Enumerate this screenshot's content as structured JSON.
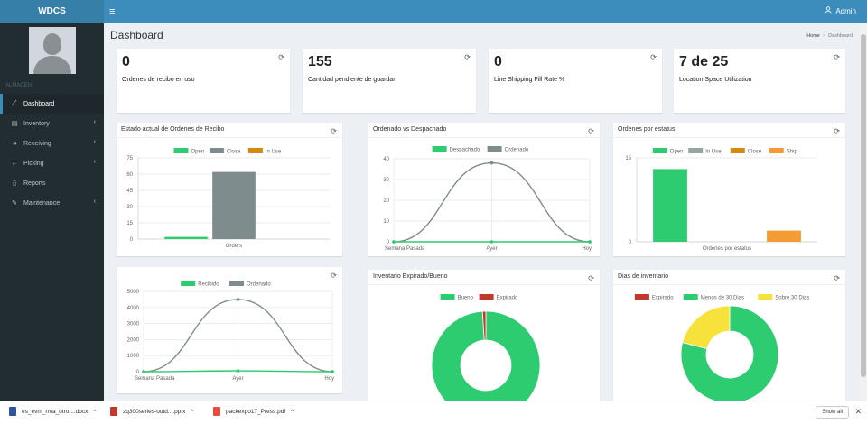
{
  "app": {
    "brand": "WDCS",
    "user": "Admin"
  },
  "sidebar": {
    "header": "ALMACEN",
    "items": [
      {
        "label": "Dashboard",
        "icon": "chart-icon",
        "active": true,
        "chev": ""
      },
      {
        "label": "Inventory",
        "icon": "list-icon",
        "active": false,
        "chev": "‹"
      },
      {
        "label": "Receiving",
        "icon": "arrow-right-icon",
        "active": false,
        "chev": "‹"
      },
      {
        "label": "Picking",
        "icon": "arrow-left-icon",
        "active": false,
        "chev": "‹"
      },
      {
        "label": "Reports",
        "icon": "file-icon",
        "active": false,
        "chev": ""
      },
      {
        "label": "Maintenance",
        "icon": "wrench-icon",
        "active": false,
        "chev": "‹"
      }
    ]
  },
  "page": {
    "title": "Dashboard",
    "breadcrumb": [
      "Home",
      "Dashboard"
    ]
  },
  "stats": [
    {
      "value": "0",
      "label": "Ordenes de recibo en uso"
    },
    {
      "value": "155",
      "label": "Cantidad pendiente de guardar"
    },
    {
      "value": "0",
      "label": "Line Shipping Fill Rate %"
    },
    {
      "value": "7 de 25",
      "label": "Location Space Utilization"
    }
  ],
  "chart_data": [
    {
      "id": "c1",
      "type": "bar",
      "title": "Estado actual de Ordenes de Recibo",
      "categories": [
        "Orders"
      ],
      "series": [
        {
          "name": "Open",
          "color": "#2ecc71",
          "values": [
            2
          ]
        },
        {
          "name": "Close",
          "color": "#7f8c8d",
          "values": [
            62
          ]
        },
        {
          "name": "In Use",
          "color": "#d68910",
          "values": [
            0
          ]
        }
      ],
      "yticks": [
        0,
        15,
        30,
        45,
        60,
        75
      ],
      "ylim": [
        0,
        75
      ]
    },
    {
      "id": "c2",
      "type": "line",
      "title": "Ordenado vs Despachado",
      "x": [
        "Semana Pasada",
        "Ayer",
        "Hoy"
      ],
      "series": [
        {
          "name": "Despachado",
          "color": "#2ecc71",
          "values": [
            0,
            0,
            0
          ]
        },
        {
          "name": "Ordenado",
          "color": "#7f8c8d",
          "values": [
            0,
            38,
            0
          ]
        }
      ],
      "yticks": [
        0,
        10,
        20,
        30,
        40
      ],
      "ylim": [
        0,
        40
      ]
    },
    {
      "id": "c3",
      "type": "bar",
      "title": "Ordenes por estatus",
      "categories": [
        "Ordenes por estatus"
      ],
      "series": [
        {
          "name": "Open",
          "color": "#2ecc71",
          "values": [
            13
          ]
        },
        {
          "name": "In Use",
          "color": "#95a5a6",
          "values": [
            0
          ]
        },
        {
          "name": "Close",
          "color": "#d68910",
          "values": [
            0
          ]
        },
        {
          "name": "Ship",
          "color": "#f39c33",
          "values": [
            2
          ]
        }
      ],
      "yticks": [
        0,
        15
      ],
      "ylim": [
        0,
        15
      ]
    },
    {
      "id": "c4",
      "type": "line",
      "title": "",
      "x": [
        "Semana Pasada",
        "Ayer",
        "Hoy"
      ],
      "series": [
        {
          "name": "Recibido",
          "color": "#2ecc71",
          "values": [
            0,
            50,
            0
          ]
        },
        {
          "name": "Ordenado",
          "color": "#7f8c8d",
          "values": [
            0,
            4500,
            0
          ]
        }
      ],
      "yticks": [
        0,
        1000,
        2000,
        3000,
        4000,
        5000
      ],
      "ylim": [
        0,
        5000
      ]
    },
    {
      "id": "c5",
      "type": "pie",
      "title": "Inventario Expirado/Bueno",
      "series": [
        {
          "name": "Bueno",
          "color": "#2ecc71",
          "value": 99
        },
        {
          "name": "Expirado",
          "color": "#c0392b",
          "value": 1
        }
      ]
    },
    {
      "id": "c6",
      "type": "pie",
      "title": "Dias de inventario",
      "series": [
        {
          "name": "Expirado",
          "color": "#c0392b",
          "value": 0
        },
        {
          "name": "Menos de 30 Dias",
          "color": "#2ecc71",
          "value": 79
        },
        {
          "name": "Sobre 30 Dias",
          "color": "#f7e13b",
          "value": 21
        }
      ]
    }
  ],
  "downloads": {
    "items": [
      {
        "name": "es_evm_rma_otro....docx",
        "color": "#2b579a"
      },
      {
        "name": "zq300series-outd....pptx",
        "color": "#c0392b"
      },
      {
        "name": "packexpo17_Press.pdf",
        "color": "#e74c3c"
      }
    ],
    "show_all": "Show all"
  }
}
